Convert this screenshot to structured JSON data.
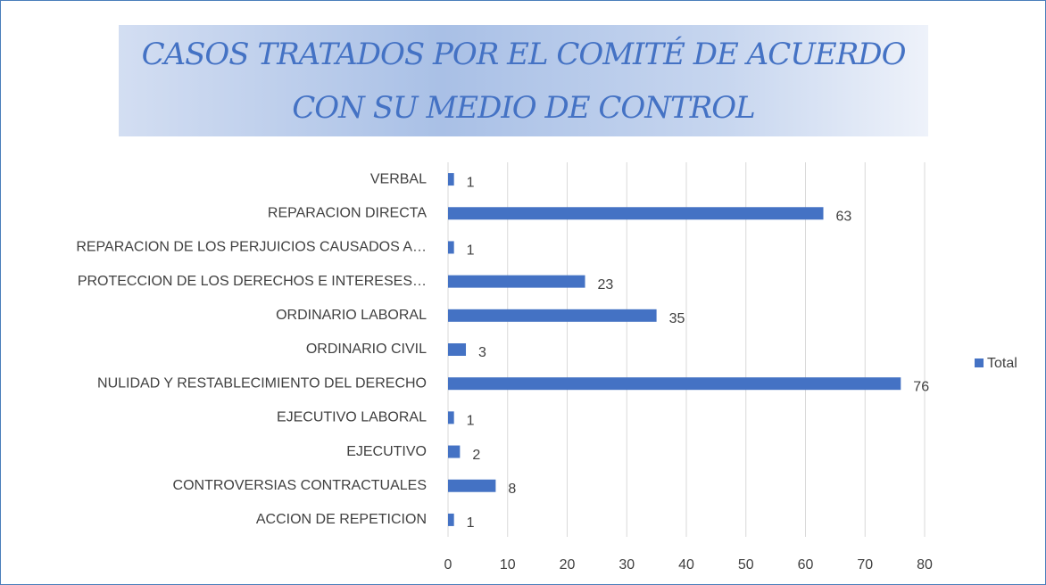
{
  "chart_data": {
    "type": "bar",
    "orientation": "horizontal",
    "title": "CASOS TRATADOS POR EL COMITÉ DE ACUERDO CON SU MEDIO DE CONTROL",
    "categories": [
      "VERBAL",
      "REPARACION DIRECTA",
      "REPARACION DE LOS PERJUICIOS CAUSADOS A…",
      "PROTECCION DE LOS DERECHOS E INTERESES…",
      "ORDINARIO LABORAL",
      "ORDINARIO CIVIL",
      "NULIDAD Y RESTABLECIMIENTO DEL DERECHO",
      "EJECUTIVO LABORAL",
      "EJECUTIVO",
      "CONTROVERSIAS CONTRACTUALES",
      "ACCION DE REPETICION"
    ],
    "series": [
      {
        "name": "Total",
        "color": "#4472c4",
        "values": [
          1,
          63,
          1,
          23,
          35,
          3,
          76,
          1,
          2,
          8,
          1
        ]
      }
    ],
    "xlim": [
      0,
      80
    ],
    "xticks": [
      0,
      10,
      20,
      30,
      40,
      50,
      60,
      70,
      80
    ],
    "grid": true,
    "legend": "right"
  }
}
